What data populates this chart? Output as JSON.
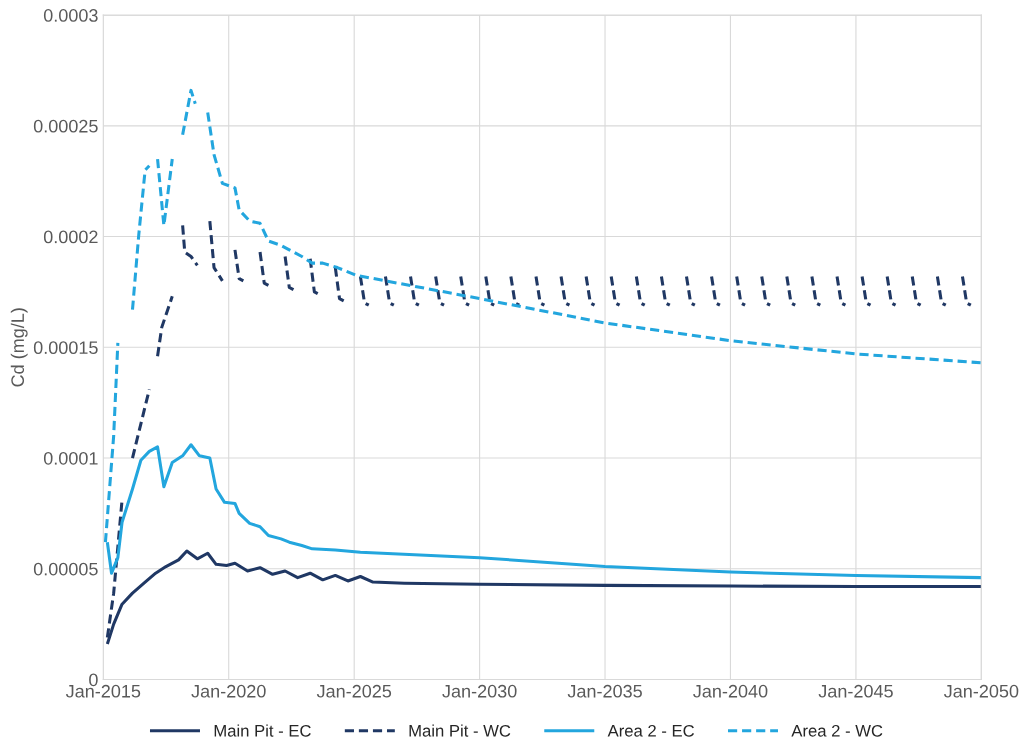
{
  "chart_data": {
    "type": "line",
    "ylabel": "Cd (mg/L)",
    "xlim": [
      "2015-01",
      "2050-01"
    ],
    "xticks": [
      {
        "value": "2015-01",
        "label": "Jan-2015"
      },
      {
        "value": "2020-01",
        "label": "Jan-2020"
      },
      {
        "value": "2025-01",
        "label": "Jan-2025"
      },
      {
        "value": "2030-01",
        "label": "Jan-2030"
      },
      {
        "value": "2035-01",
        "label": "Jan-2035"
      },
      {
        "value": "2040-01",
        "label": "Jan-2040"
      },
      {
        "value": "2045-01",
        "label": "Jan-2045"
      },
      {
        "value": "2050-01",
        "label": "Jan-2050"
      }
    ],
    "ylim": [
      0,
      0.0003
    ],
    "yticks": [
      0,
      {
        "value": 5e-05,
        "label": "0.00005"
      },
      {
        "value": 0.0001,
        "label": "0.0001"
      },
      {
        "value": 0.00015,
        "label": "0.00015"
      },
      {
        "value": 0.0002,
        "label": "0.0002"
      },
      {
        "value": 0.00025,
        "label": "0.00025"
      },
      {
        "value": 0.0003,
        "label": "0.0003"
      }
    ],
    "grid": true,
    "legend": "bottom",
    "series": [
      {
        "name": "Main Pit - EC",
        "color": "#203864",
        "line_style": "solid",
        "x": [
          "2015-03",
          "2015-06",
          "2015-10",
          "2016-03",
          "2016-09",
          "2017-02",
          "2017-07",
          "2018-01",
          "2018-05",
          "2018-10",
          "2019-03",
          "2019-07",
          "2019-12",
          "2020-04",
          "2020-10",
          "2021-04",
          "2021-10",
          "2022-04",
          "2022-10",
          "2023-04",
          "2023-10",
          "2024-04",
          "2024-10",
          "2025-04",
          "2025-10",
          "2027-01",
          "2030-01",
          "2035-01",
          "2040-01",
          "2045-01",
          "2050-01"
        ],
        "values": [
          1.6e-05,
          2.5e-05,
          3.4e-05,
          3.9e-05,
          4.4e-05,
          4.8e-05,
          5.1e-05,
          5.4e-05,
          5.8e-05,
          5.45e-05,
          5.7e-05,
          5.2e-05,
          5.15e-05,
          5.25e-05,
          4.9e-05,
          5.05e-05,
          4.75e-05,
          4.9e-05,
          4.6e-05,
          4.8e-05,
          4.5e-05,
          4.7e-05,
          4.45e-05,
          4.65e-05,
          4.4e-05,
          4.35e-05,
          4.3e-05,
          4.25e-05,
          4.22e-05,
          4.2e-05,
          4.2e-05
        ]
      },
      {
        "name": "Main Pit - WC",
        "color": "#203864",
        "line_style": "dashed",
        "x": [
          "2015-03",
          "2015-06",
          "2015-10",
          "2015-11",
          "2016-03",
          "2016-11",
          "2016-12",
          "2017-03",
          "2017-05",
          "2017-10",
          "2017-11",
          "2018-03",
          "2018-04",
          "2018-07",
          "2018-10",
          "2018-11",
          "2019-04",
          "2019-06",
          "2019-10",
          "2019-12",
          "2020-04",
          "2020-06",
          "2020-08",
          "2020-09",
          "2021-04",
          "2021-06",
          "2021-08",
          "2021-09",
          "2022-04",
          "2022-06",
          "2022-08",
          "2022-09",
          "2023-04",
          "2023-06",
          "2023-08",
          "2023-09",
          "2024-04",
          "2024-06",
          "2024-08",
          "2024-09",
          "2025-04",
          "2025-06",
          "2025-08",
          "2025-09",
          "2026-04",
          "2026-06",
          "2026-08",
          "2026-09",
          "2027-04",
          "2027-06",
          "2027-08",
          "2027-09",
          "2028-04",
          "2028-06",
          "2028-08",
          "2028-09",
          "2029-04",
          "2029-06",
          "2029-08",
          "2029-09",
          "2030-04",
          "2030-06",
          "2030-08",
          "2030-09",
          "2031-04",
          "2031-06",
          "2031-08",
          "2031-09",
          "2032-04",
          "2032-06",
          "2032-08",
          "2032-09",
          "2033-04",
          "2033-06",
          "2033-08",
          "2033-09",
          "2034-04",
          "2034-06",
          "2034-08",
          "2034-09",
          "2035-04",
          "2035-06",
          "2035-08",
          "2035-09",
          "2036-04",
          "2036-06",
          "2036-08",
          "2036-09",
          "2037-04",
          "2037-06",
          "2037-08",
          "2037-09",
          "2038-04",
          "2038-06",
          "2038-08",
          "2038-09",
          "2039-04",
          "2039-06",
          "2039-08",
          "2039-09",
          "2040-04",
          "2040-06",
          "2040-08",
          "2040-09",
          "2041-04",
          "2041-06",
          "2041-08",
          "2041-09",
          "2042-04",
          "2042-06",
          "2042-08",
          "2042-09",
          "2043-04",
          "2043-06",
          "2043-08",
          "2043-09",
          "2044-04",
          "2044-06",
          "2044-08",
          "2044-09",
          "2045-04",
          "2045-06",
          "2045-08",
          "2045-09",
          "2046-04",
          "2046-06",
          "2046-08",
          "2046-09",
          "2047-04",
          "2047-06",
          "2047-08",
          "2047-09",
          "2048-04",
          "2048-06",
          "2048-08",
          "2048-09",
          "2049-04",
          "2049-06",
          "2049-08"
        ],
        "values": [
          1.9e-05,
          3.9e-05,
          8.1e-05,
          null,
          0.0001,
          0.000131,
          null,
          0.000146,
          0.000159,
          0.000173,
          null,
          0.000205,
          0.000193,
          0.000191,
          0.000187,
          null,
          0.000207,
          0.000186,
          0.00018,
          null,
          0.000194,
          0.000181,
          0.00018,
          null,
          0.000193,
          0.000179,
          0.000178,
          null,
          0.000191,
          0.000177,
          0.000176,
          null,
          0.00019,
          0.000175,
          0.000174,
          null,
          0.000186,
          0.000172,
          0.000171,
          null,
          0.000182,
          0.00017,
          0.000169,
          null,
          0.000182,
          0.00017,
          0.000169,
          null,
          0.000182,
          0.00017,
          0.000169,
          null,
          0.000182,
          0.00017,
          0.000169,
          null,
          0.000182,
          0.00017,
          0.000169,
          null,
          0.000182,
          0.00017,
          0.000169,
          null,
          0.000182,
          0.00017,
          0.000169,
          null,
          0.000182,
          0.00017,
          0.000169,
          null,
          0.000182,
          0.00017,
          0.000169,
          null,
          0.000182,
          0.00017,
          0.000169,
          null,
          0.000182,
          0.00017,
          0.000169,
          null,
          0.000182,
          0.00017,
          0.000169,
          null,
          0.000182,
          0.00017,
          0.000169,
          null,
          0.000182,
          0.00017,
          0.000169,
          null,
          0.000182,
          0.00017,
          0.000169,
          null,
          0.000182,
          0.00017,
          0.000169,
          null,
          0.000182,
          0.00017,
          0.000169,
          null,
          0.000182,
          0.00017,
          0.000169,
          null,
          0.000182,
          0.00017,
          0.000169,
          null,
          0.000182,
          0.00017,
          0.000169,
          null,
          0.000182,
          0.00017,
          0.000169,
          null,
          0.000182,
          0.00017,
          0.000169,
          null,
          0.000182,
          0.00017,
          0.000169,
          null,
          0.000182,
          0.00017,
          0.000169,
          null,
          0.000182,
          0.00017,
          0.000169
        ]
      },
      {
        "name": "Area 2 - EC",
        "color": "#23a6de",
        "line_style": "solid",
        "x": [
          "2015-03",
          "2015-05",
          "2015-08",
          "2015-10",
          "2016-03",
          "2016-07",
          "2016-11",
          "2017-03",
          "2017-06",
          "2017-10",
          "2018-03",
          "2018-07",
          "2018-11",
          "2019-04",
          "2019-07",
          "2019-11",
          "2020-04",
          "2020-06",
          "2020-11",
          "2021-04",
          "2021-08",
          "2022-02",
          "2022-06",
          "2022-12",
          "2023-05",
          "2024-04",
          "2025-04",
          "2030-01",
          "2035-01",
          "2040-01",
          "2045-01",
          "2050-01"
        ],
        "values": [
          6.2e-05,
          4.8e-05,
          5.5e-05,
          7.1e-05,
          8.6e-05,
          9.9e-05,
          0.000103,
          0.000105,
          8.7e-05,
          9.8e-05,
          0.000101,
          0.000106,
          0.000101,
          0.0001,
          8.6e-05,
          8e-05,
          7.95e-05,
          7.5e-05,
          7.05e-05,
          6.9e-05,
          6.5e-05,
          6.35e-05,
          6.2e-05,
          6.05e-05,
          5.9e-05,
          5.85e-05,
          5.75e-05,
          5.5e-05,
          5.1e-05,
          4.85e-05,
          4.7e-05,
          4.6e-05
        ]
      },
      {
        "name": "Area 2 - WC",
        "color": "#23a6de",
        "line_style": "dashed",
        "x": [
          "2015-02",
          "2015-06",
          "2015-08",
          "2015-09",
          "2016-03",
          "2016-06",
          "2016-09",
          "2016-11",
          "2016-12",
          "2017-03",
          "2017-06",
          "2017-10",
          "2017-11",
          "2018-03",
          "2018-07",
          "2018-09",
          "2018-10",
          "2019-03",
          "2019-06",
          "2019-10",
          "2020-04",
          "2020-06",
          "2020-11",
          "2021-04",
          "2021-08",
          "2022-02",
          "2022-06",
          "2022-12",
          "2023-05",
          "2023-10",
          "2024-05",
          "2025-02",
          "2030-01",
          "2035-01",
          "2040-01",
          "2045-01",
          "2050-01"
        ],
        "values": [
          6.2e-05,
          0.00011,
          0.000152,
          null,
          0.000167,
          0.000201,
          0.00023,
          0.000232,
          null,
          0.000235,
          0.000205,
          0.000235,
          null,
          0.000246,
          0.000266,
          0.00026,
          null,
          0.000256,
          0.000237,
          0.000224,
          0.000222,
          0.000212,
          0.000207,
          0.000206,
          0.000198,
          0.000196,
          0.000194,
          0.000191,
          0.000188,
          0.000188,
          0.000186,
          0.0001825,
          0.000172,
          0.000161,
          0.000153,
          0.000147,
          0.000143
        ]
      }
    ]
  }
}
